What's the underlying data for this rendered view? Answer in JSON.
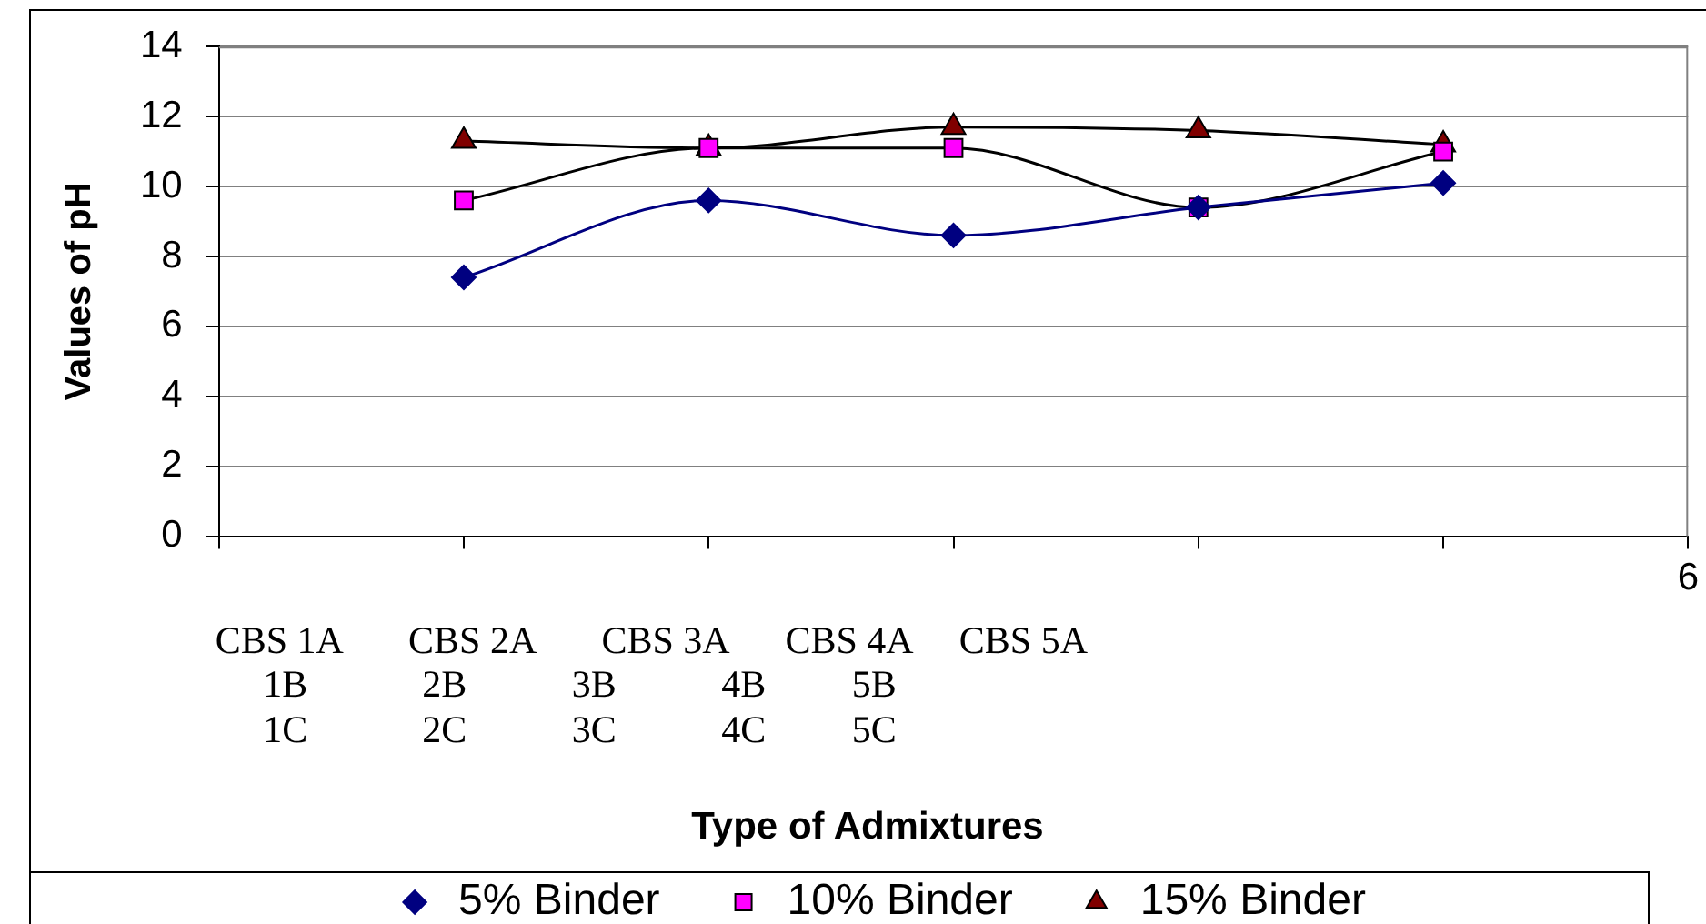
{
  "chart_data": {
    "type": "line",
    "ylabel": "Values of pH",
    "annotations": [
      "CBS 1A       CBS 2A       CBS 3A      CBS 4A     CBS 5A\n     1B            2B           3B           4B         5B\n     1C            2C           3C           4C         5C",
      "Type of Admixtures"
    ],
    "categories": [
      null,
      null,
      null,
      null,
      null,
      null,
      "6"
    ],
    "series": [
      {
        "name": "5% Binder",
        "color": "#000080",
        "marker": "diamond",
        "values": [
          null,
          7.4,
          9.6,
          8.6,
          9.4,
          10.1,
          null
        ]
      },
      {
        "name": "10% Binder",
        "color": "#000000",
        "colors": [
          "#ff00ff",
          "#ff00ff",
          "#ff00ff",
          "#ff00ff",
          "#ff00ff",
          "#ff00ff",
          "#ff00ff"
        ],
        "marker": "square",
        "values": [
          null,
          9.6,
          11.1,
          11.1,
          9.4,
          11.0,
          null
        ]
      },
      {
        "name": "15% Binder",
        "color": "#000000",
        "colors": [
          "#800000",
          "#800000",
          "#800000",
          "#800000",
          "#800000",
          "#800000",
          "#800000"
        ],
        "marker": "triangle",
        "values": [
          null,
          11.3,
          11.1,
          11.7,
          11.6,
          11.2,
          null
        ]
      }
    ],
    "ylim": [
      0,
      14
    ],
    "yticks": [
      0,
      2,
      4,
      6,
      8,
      10,
      12,
      14
    ],
    "grid": "y",
    "legend": "bottom",
    "line_style": "solid"
  }
}
